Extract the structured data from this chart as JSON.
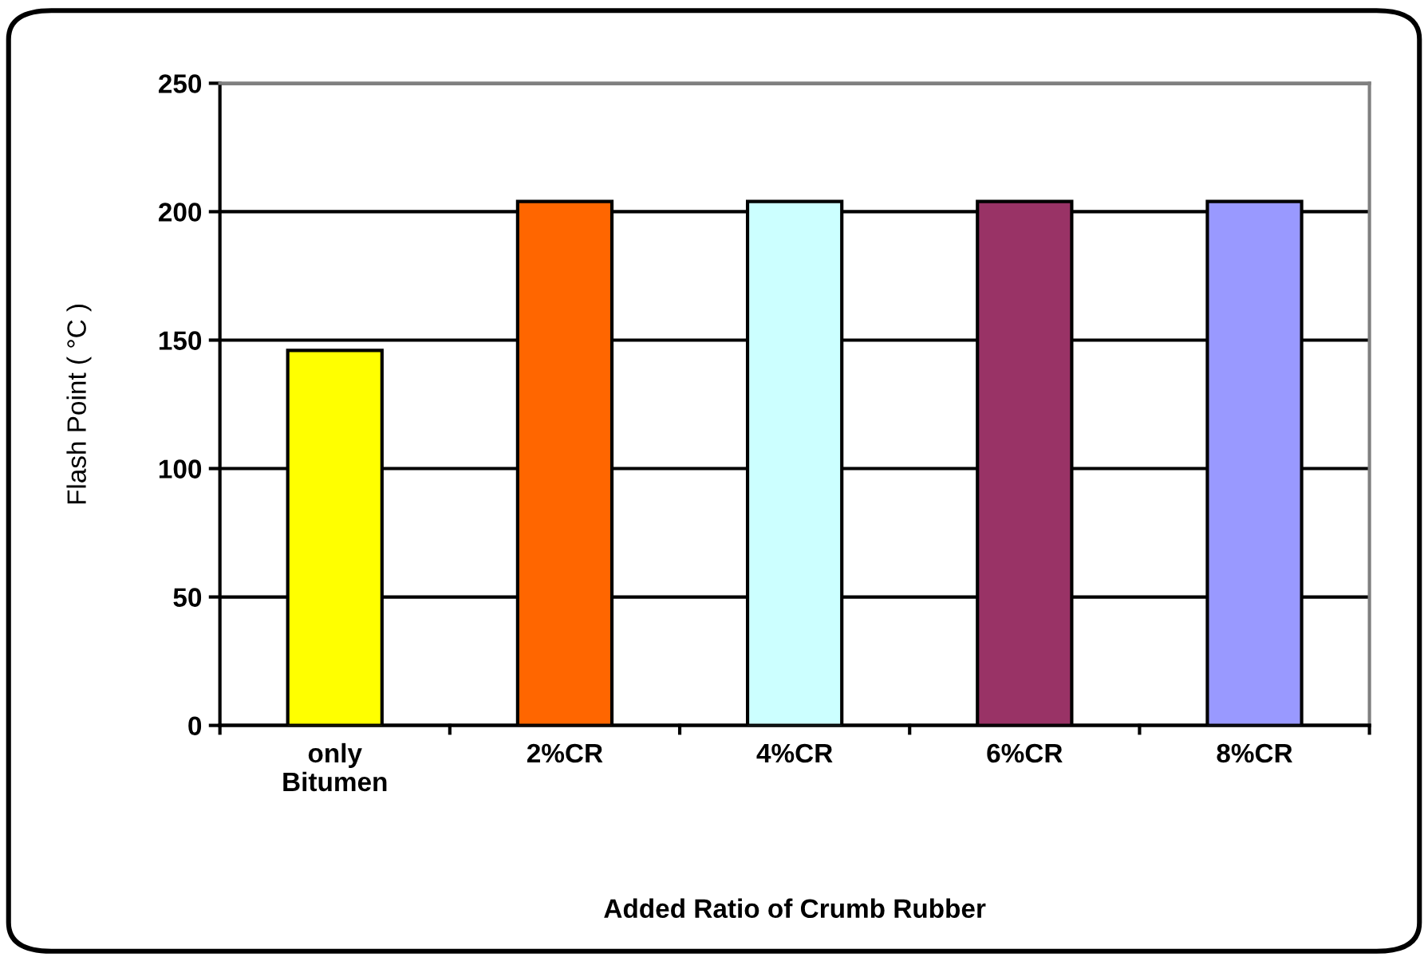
{
  "chart_data": {
    "type": "bar",
    "xlabel": "Added Ratio of Crumb Rubber",
    "ylabel": "Flash Point ( °C )",
    "categories": [
      "only\nBitumen",
      "2%CR",
      "4%CR",
      "6%CR",
      "8%CR"
    ],
    "values": [
      146,
      204,
      204,
      204,
      204
    ],
    "colors": [
      "#ffff00",
      "#ff6600",
      "#ccffff",
      "#993366",
      "#9999ff"
    ],
    "ylim": [
      0,
      250
    ],
    "yticks": [
      0,
      50,
      100,
      150,
      200,
      250
    ],
    "grid": "y",
    "legend": false
  }
}
